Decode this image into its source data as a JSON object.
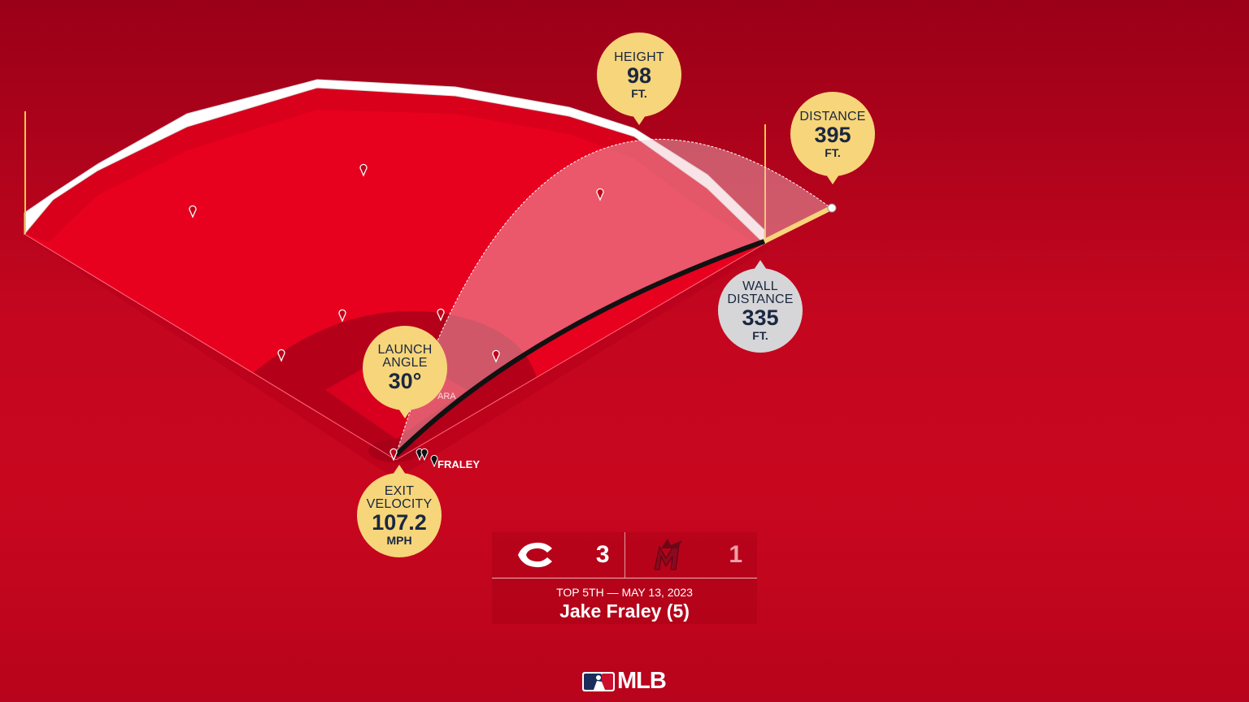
{
  "callouts": {
    "height": {
      "label": "HEIGHT",
      "value": "98",
      "unit": "FT."
    },
    "distance": {
      "label": "DISTANCE",
      "value": "395",
      "unit": "FT."
    },
    "wall_distance": {
      "label_1": "WALL",
      "label_2": "DISTANCE",
      "value": "335",
      "unit": "FT."
    },
    "launch_angle": {
      "label_1": "LAUNCH",
      "label_2": "ANGLE",
      "value": "30°"
    },
    "exit_velocity": {
      "label_1": "EXIT",
      "label_2": "VELOCITY",
      "value": "107.2",
      "unit": "MPH"
    }
  },
  "players": {
    "batter": "FRALEY",
    "fielder_partial": "ARA"
  },
  "scoreboard": {
    "away_team_icon": "reds-c-logo",
    "away_score": "3",
    "home_team_icon": "marlins-m-logo",
    "home_score": "1",
    "inning_date": "TOP 5TH — MAY 13, 2023",
    "player": "Jake Fraley (5)"
  },
  "brand": {
    "logo_text": "MLB"
  },
  "colors": {
    "background": "#c4061f",
    "callout": "#f7d57a",
    "wall_callout": "#d6d6d8",
    "field": "#e8001f"
  }
}
